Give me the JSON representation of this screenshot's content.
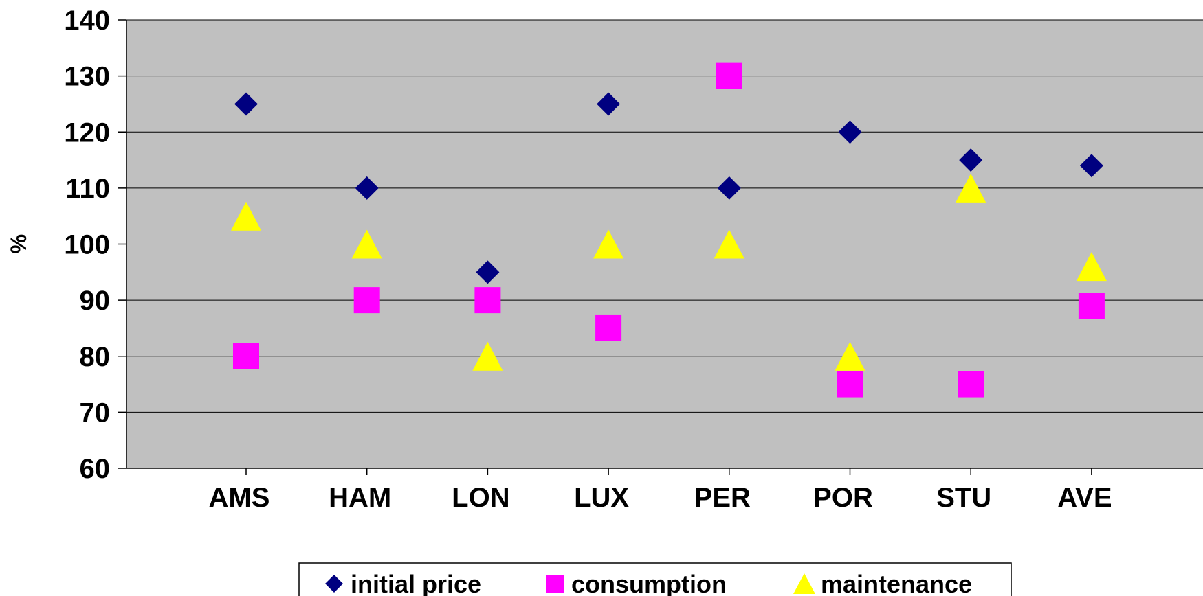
{
  "chart_data": {
    "type": "scatter",
    "categories": [
      "AMS",
      "HAM",
      "LON",
      "LUX",
      "PER",
      "POR",
      "STU",
      "AVE"
    ],
    "ylabel": "%",
    "ylim": [
      60,
      140
    ],
    "yticks": [
      60,
      70,
      80,
      90,
      100,
      110,
      120,
      130,
      140
    ],
    "grid": true,
    "legend_position": "bottom",
    "plot_background": "#c0c0c0",
    "series": [
      {
        "name": "initial price",
        "marker": "diamond",
        "color": "#000080",
        "values": [
          125,
          110,
          95,
          125,
          110,
          120,
          115,
          114
        ]
      },
      {
        "name": "consumption",
        "marker": "square",
        "color": "#ff00ff",
        "values": [
          80,
          90,
          90,
          85,
          130,
          75,
          75,
          89
        ]
      },
      {
        "name": "maintenance",
        "marker": "triangle",
        "color": "#ffff00",
        "values": [
          105,
          100,
          80,
          100,
          100,
          80,
          110,
          96
        ]
      }
    ]
  }
}
